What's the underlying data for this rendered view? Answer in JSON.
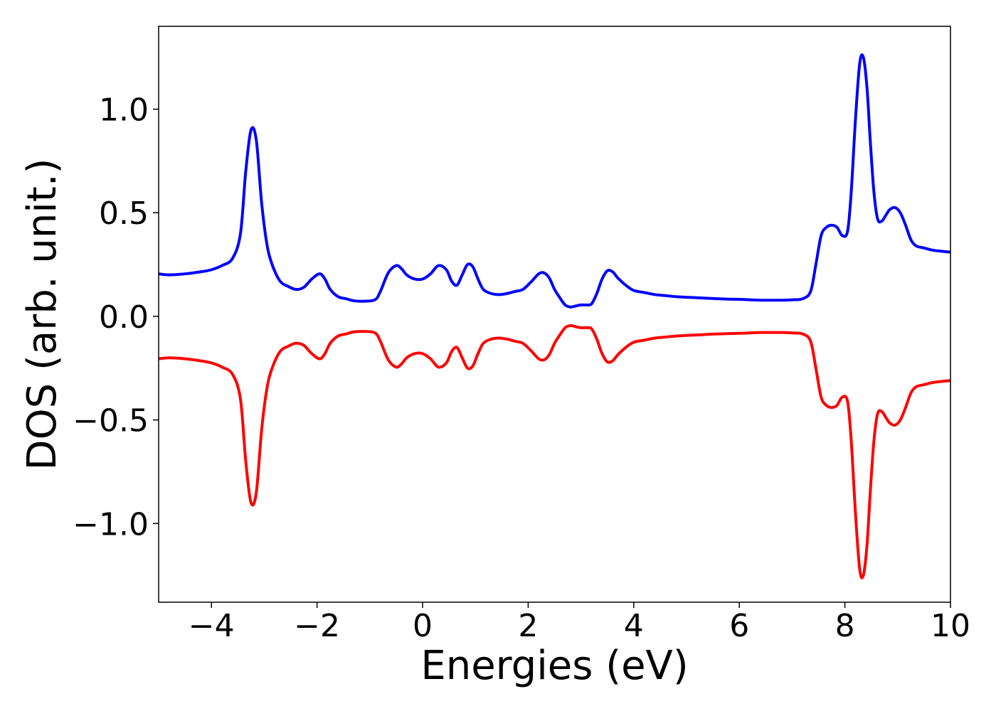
{
  "chart_data": {
    "type": "line",
    "title": "",
    "xlabel": "Energies (eV)",
    "ylabel": "DOS (arb. unit.)",
    "xlim": [
      -5,
      10
    ],
    "ylim": [
      -1.38,
      1.4
    ],
    "grid": false,
    "x_ticks": [
      -4,
      -2,
      0,
      2,
      4,
      6,
      8,
      10
    ],
    "x_tick_labels": [
      "−4",
      "−2",
      "0",
      "2",
      "4",
      "6",
      "8",
      "10"
    ],
    "y_ticks": [
      1.0,
      0.5,
      0.0,
      -0.5,
      -1.0
    ],
    "y_tick_labels": [
      "1.0",
      "0.5",
      "0.0",
      "−0.5",
      "−1.0"
    ],
    "x": [
      -5.0,
      -4.8,
      -4.5,
      -4.2,
      -4.0,
      -3.8,
      -3.6,
      -3.45,
      -3.35,
      -3.25,
      -3.15,
      -3.05,
      -2.95,
      -2.85,
      -2.7,
      -2.55,
      -2.4,
      -2.25,
      -2.1,
      -1.95,
      -1.85,
      -1.75,
      -1.6,
      -1.45,
      -1.3,
      -1.1,
      -0.9,
      -0.8,
      -0.65,
      -0.5,
      -0.4,
      -0.3,
      -0.15,
      0.0,
      0.15,
      0.3,
      0.45,
      0.55,
      0.65,
      0.75,
      0.85,
      0.95,
      1.05,
      1.15,
      1.3,
      1.45,
      1.6,
      1.75,
      1.9,
      2.05,
      2.2,
      2.3,
      2.4,
      2.5,
      2.6,
      2.7,
      2.8,
      2.9,
      3.0,
      3.1,
      3.2,
      3.3,
      3.4,
      3.5,
      3.6,
      3.7,
      3.85,
      4.0,
      4.2,
      4.4,
      4.6,
      4.8,
      5.0,
      5.2,
      5.4,
      5.6,
      5.8,
      6.0,
      6.2,
      6.4,
      6.6,
      6.8,
      7.0,
      7.2,
      7.35,
      7.45,
      7.55,
      7.65,
      7.75,
      7.85,
      7.95,
      8.05,
      8.12,
      8.2,
      8.28,
      8.35,
      8.42,
      8.48,
      8.55,
      8.62,
      8.7,
      8.78,
      8.85,
      8.95,
      9.05,
      9.15,
      9.25,
      9.35,
      9.5,
      9.65,
      9.8,
      10.0
    ],
    "series": [
      {
        "color": "#0000ff",
        "values": [
          0.205,
          0.2,
          0.205,
          0.215,
          0.225,
          0.245,
          0.28,
          0.4,
          0.7,
          0.9,
          0.85,
          0.55,
          0.35,
          0.25,
          0.17,
          0.145,
          0.13,
          0.14,
          0.18,
          0.205,
          0.18,
          0.13,
          0.095,
          0.085,
          0.075,
          0.073,
          0.08,
          0.12,
          0.21,
          0.245,
          0.23,
          0.2,
          0.18,
          0.18,
          0.205,
          0.245,
          0.225,
          0.17,
          0.15,
          0.2,
          0.25,
          0.24,
          0.18,
          0.13,
          0.11,
          0.105,
          0.11,
          0.12,
          0.13,
          0.165,
          0.205,
          0.21,
          0.185,
          0.13,
          0.09,
          0.055,
          0.045,
          0.05,
          0.055,
          0.055,
          0.06,
          0.11,
          0.18,
          0.22,
          0.215,
          0.185,
          0.15,
          0.125,
          0.115,
          0.105,
          0.1,
          0.095,
          0.092,
          0.09,
          0.087,
          0.085,
          0.083,
          0.082,
          0.08,
          0.078,
          0.078,
          0.078,
          0.08,
          0.085,
          0.12,
          0.25,
          0.39,
          0.43,
          0.44,
          0.43,
          0.39,
          0.41,
          0.6,
          0.95,
          1.22,
          1.25,
          1.1,
          0.85,
          0.6,
          0.47,
          0.46,
          0.49,
          0.515,
          0.525,
          0.5,
          0.44,
          0.37,
          0.34,
          0.33,
          0.32,
          0.315,
          0.31
        ]
      },
      {
        "color": "#ff0000",
        "values": [
          -0.205,
          -0.2,
          -0.205,
          -0.215,
          -0.225,
          -0.245,
          -0.28,
          -0.4,
          -0.7,
          -0.9,
          -0.85,
          -0.55,
          -0.35,
          -0.25,
          -0.17,
          -0.145,
          -0.13,
          -0.14,
          -0.18,
          -0.205,
          -0.18,
          -0.13,
          -0.095,
          -0.085,
          -0.075,
          -0.073,
          -0.08,
          -0.12,
          -0.21,
          -0.245,
          -0.23,
          -0.2,
          -0.18,
          -0.18,
          -0.205,
          -0.245,
          -0.225,
          -0.17,
          -0.15,
          -0.2,
          -0.25,
          -0.24,
          -0.18,
          -0.13,
          -0.11,
          -0.105,
          -0.11,
          -0.12,
          -0.13,
          -0.165,
          -0.205,
          -0.21,
          -0.185,
          -0.13,
          -0.09,
          -0.055,
          -0.045,
          -0.05,
          -0.055,
          -0.055,
          -0.06,
          -0.11,
          -0.18,
          -0.22,
          -0.215,
          -0.185,
          -0.15,
          -0.125,
          -0.115,
          -0.105,
          -0.1,
          -0.095,
          -0.092,
          -0.09,
          -0.087,
          -0.085,
          -0.083,
          -0.082,
          -0.08,
          -0.078,
          -0.078,
          -0.078,
          -0.08,
          -0.085,
          -0.12,
          -0.25,
          -0.39,
          -0.43,
          -0.44,
          -0.43,
          -0.39,
          -0.41,
          -0.6,
          -0.95,
          -1.22,
          -1.25,
          -1.1,
          -0.85,
          -0.6,
          -0.47,
          -0.46,
          -0.49,
          -0.515,
          -0.525,
          -0.5,
          -0.44,
          -0.37,
          -0.34,
          -0.33,
          -0.32,
          -0.315,
          -0.31
        ]
      }
    ]
  }
}
